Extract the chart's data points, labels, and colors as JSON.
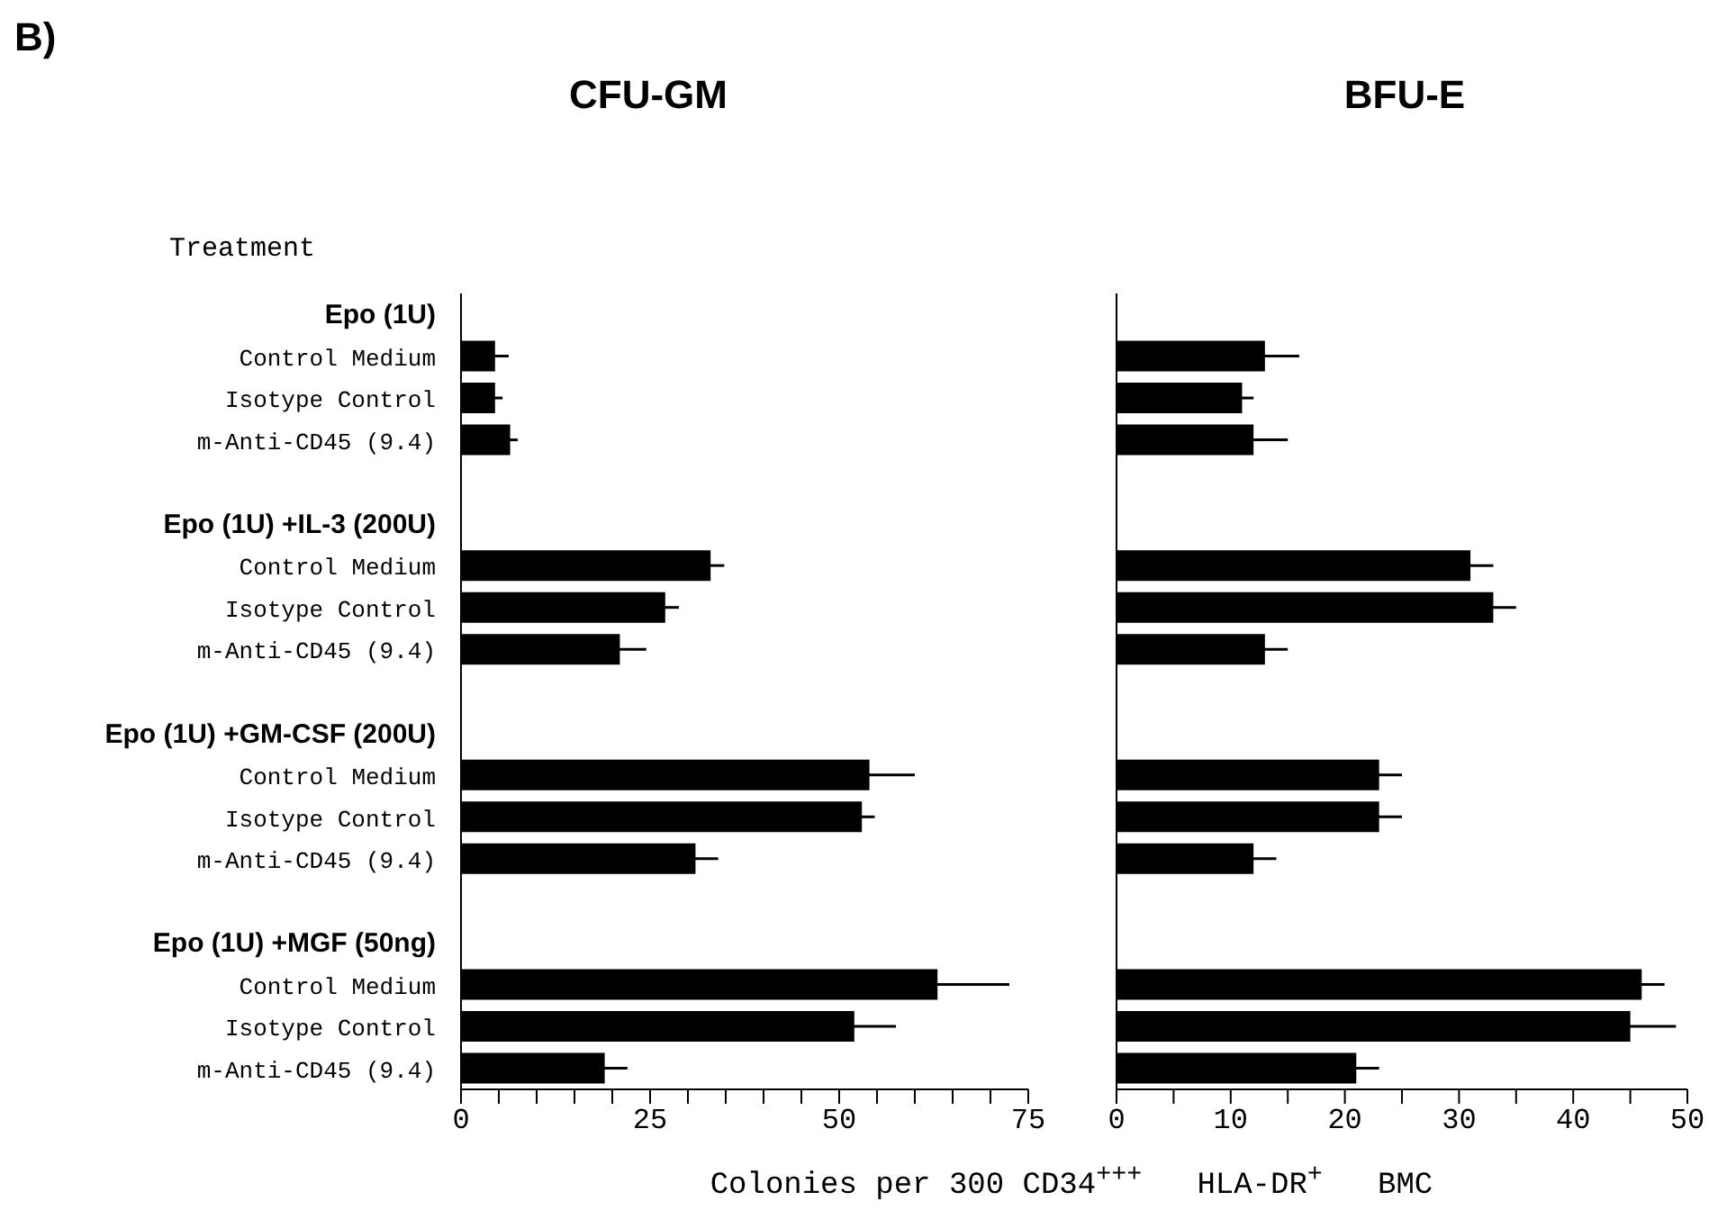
{
  "chart_data": [
    {
      "type": "bar",
      "orientation": "horizontal",
      "title": "CFU-GM",
      "xlabel": "Colonies per 300 CD34$^{+++}$  HLA-DR$^{+}$  BMC",
      "annotations": [
        "B)",
        "Treatment"
      ],
      "categories": [
        "Epo (1U)",
        "Control Medium",
        "Isotype Control",
        "m-Anti-CD45 (9.4)",
        null,
        "Epo (1U) +IL-3 (200U)",
        "Control Medium",
        "Isotype Control",
        "m-Anti-CD45 (9.4)",
        null,
        "Epo (1U) +GM-CSF (200U)",
        "Control Medium",
        "Isotype Control",
        "m-Anti-CD45 (9.4)",
        null,
        "Epo (1U) +MGF (50ng)",
        "Control Medium",
        "Isotype Control",
        "m-Anti-CD45 (9.4)"
      ],
      "values": [
        null,
        4.5,
        4.5,
        6.5,
        null,
        null,
        33,
        27,
        21,
        null,
        null,
        54,
        53,
        31,
        null,
        null,
        63,
        52,
        19
      ],
      "errors": [
        null,
        1.8,
        1,
        1,
        null,
        null,
        1.8,
        1.8,
        3.5,
        null,
        null,
        6,
        1.7,
        3,
        null,
        null,
        9.5,
        5.5,
        3
      ],
      "color": "#000000",
      "xlim": [
        0,
        75
      ],
      "xticks": [
        0,
        {
          "value": 5,
          "label": null
        },
        {
          "value": 10,
          "label": null
        },
        {
          "value": 15,
          "label": null
        },
        {
          "value": 20,
          "label": null
        },
        25,
        {
          "value": 30,
          "label": null
        },
        {
          "value": 35,
          "label": null
        },
        {
          "value": 40,
          "label": null
        },
        {
          "value": 45,
          "label": null
        },
        50,
        {
          "value": 55,
          "label": null
        },
        {
          "value": 60,
          "label": null
        },
        {
          "value": 65,
          "label": null
        },
        {
          "value": 70,
          "label": null
        },
        75
      ]
    },
    {
      "type": "bar",
      "orientation": "horizontal",
      "title": "BFU-E",
      "tick_labels": "x",
      "categories": [
        null,
        null,
        null,
        null,
        null,
        null,
        null,
        null,
        null,
        null,
        null,
        null,
        null,
        null,
        null,
        null,
        null,
        null,
        null
      ],
      "values": [
        null,
        13,
        11,
        12,
        null,
        null,
        31,
        33,
        13,
        null,
        null,
        23,
        23,
        12,
        null,
        null,
        46,
        45,
        21
      ],
      "errors": [
        null,
        3,
        1,
        3,
        null,
        null,
        2,
        2,
        2,
        null,
        null,
        2,
        2,
        2,
        null,
        null,
        2,
        4,
        2
      ],
      "color": "#000000",
      "xlim": [
        0,
        50
      ],
      "xticks": [
        0,
        {
          "value": 5,
          "label": null
        },
        10,
        {
          "value": 15,
          "label": null
        },
        20,
        {
          "value": 25,
          "label": null
        },
        30,
        {
          "value": 35,
          "label": null
        },
        40,
        {
          "value": 45,
          "label": null
        },
        50
      ]
    }
  ]
}
